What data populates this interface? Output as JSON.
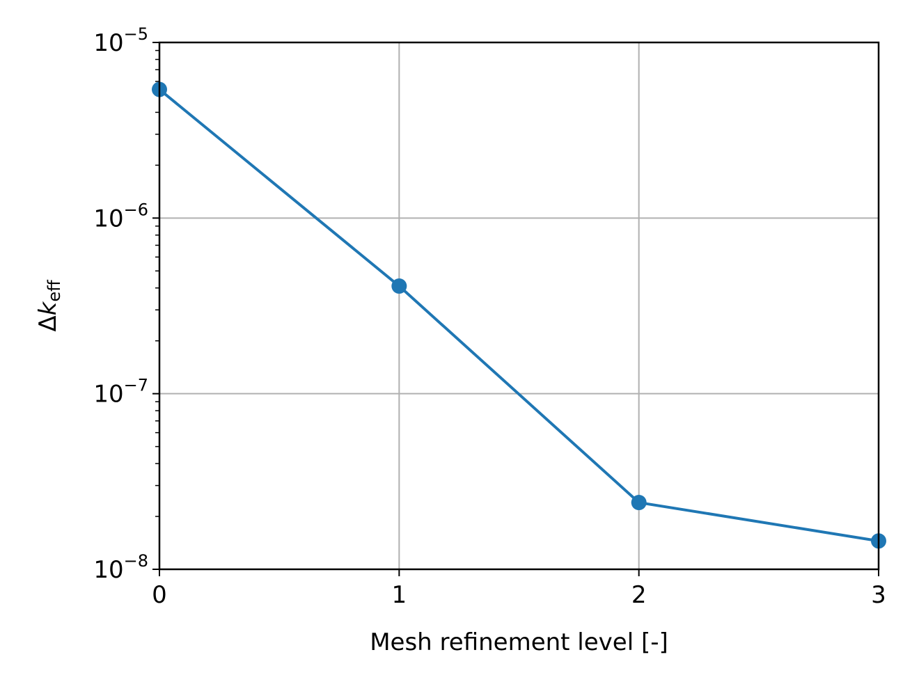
{
  "chart_data": {
    "type": "line",
    "title": "",
    "xlabel": "Mesh refinement level [-]",
    "ylabel": {
      "delta": "Δ",
      "symbol": "k",
      "subscript": "eff"
    },
    "x": [
      0,
      1,
      2,
      3
    ],
    "xticks": [
      "0",
      "1",
      "2",
      "3"
    ],
    "xlim": [
      0,
      3
    ],
    "yscale": "log",
    "ylim": [
      1e-08,
      1e-05
    ],
    "yticks": [
      {
        "value": 1e-08,
        "base": "10",
        "exp": "−8"
      },
      {
        "value": 1e-07,
        "base": "10",
        "exp": "−7"
      },
      {
        "value": 1e-06,
        "base": "10",
        "exp": "−6"
      },
      {
        "value": 1e-05,
        "base": "10",
        "exp": "−5"
      }
    ],
    "grid": true,
    "series": [
      {
        "values": [
          5.4e-06,
          4.1e-07,
          2.4e-08,
          1.45e-08
        ],
        "color": "#1f77b4",
        "marker": "circle"
      }
    ]
  }
}
